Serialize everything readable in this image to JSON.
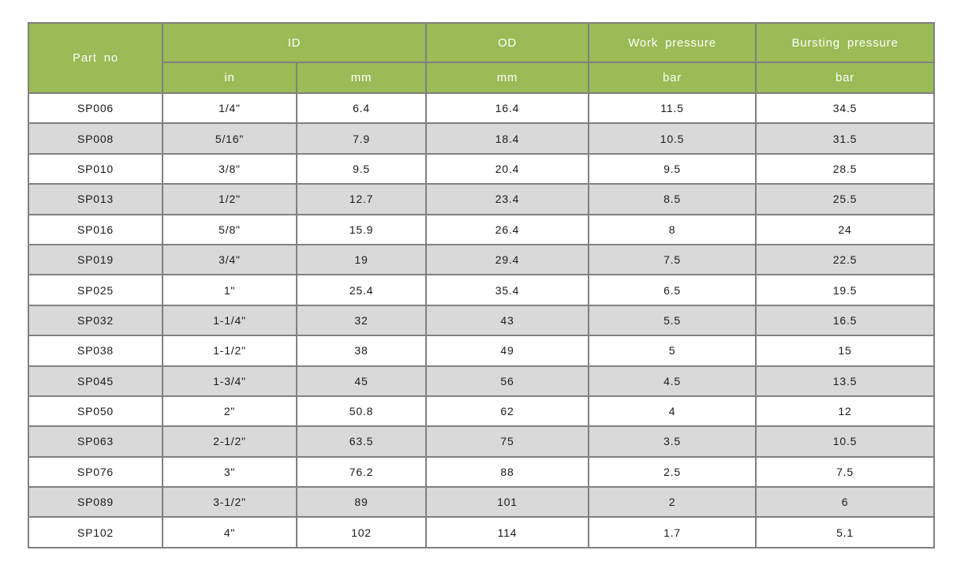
{
  "table": {
    "header": {
      "part_no": "Part no",
      "id": "ID",
      "od": "OD",
      "work_pressure": "Work pressure",
      "bursting_pressure": "Bursting pressure"
    },
    "subheader": {
      "id_in": "in",
      "id_mm": "mm",
      "od_mm": "mm",
      "work_bar": "bar",
      "bursting_bar": "bar"
    },
    "rows": [
      [
        "SP006",
        "1/4\"",
        "6.4",
        "16.4",
        "11.5",
        "34.5"
      ],
      [
        "SP008",
        "5/16\"",
        "7.9",
        "18.4",
        "10.5",
        "31.5"
      ],
      [
        "SP010",
        "3/8\"",
        "9.5",
        "20.4",
        "9.5",
        "28.5"
      ],
      [
        "SP013",
        "1/2\"",
        "12.7",
        "23.4",
        "8.5",
        "25.5"
      ],
      [
        "SP016",
        "5/8\"",
        "15.9",
        "26.4",
        "8",
        "24"
      ],
      [
        "SP019",
        "3/4\"",
        "19",
        "29.4",
        "7.5",
        "22.5"
      ],
      [
        "SP025",
        "1\"",
        "25.4",
        "35.4",
        "6.5",
        "19.5"
      ],
      [
        "SP032",
        "1-1/4\"",
        "32",
        "43",
        "5.5",
        "16.5"
      ],
      [
        "SP038",
        "1-1/2\"",
        "38",
        "49",
        "5",
        "15"
      ],
      [
        "SP045",
        "1-3/4\"",
        "45",
        "56",
        "4.5",
        "13.5"
      ],
      [
        "SP050",
        "2\"",
        "50.8",
        "62",
        "4",
        "12"
      ],
      [
        "SP063",
        "2-1/2\"",
        "63.5",
        "75",
        "3.5",
        "10.5"
      ],
      [
        "SP076",
        "3\"",
        "76.2",
        "88",
        "2.5",
        "7.5"
      ],
      [
        "SP089",
        "3-1/2\"",
        "89",
        "101",
        "2",
        "6"
      ],
      [
        "SP102",
        "4\"",
        "102",
        "114",
        "1.7",
        "5.1"
      ]
    ]
  },
  "colors": {
    "header_bg": "#9abb55",
    "header_text": "#ffffff",
    "row_white": "#ffffff",
    "row_alt": "#d9d9d9",
    "border": "#808080",
    "body_text": "#1a1a1a"
  }
}
